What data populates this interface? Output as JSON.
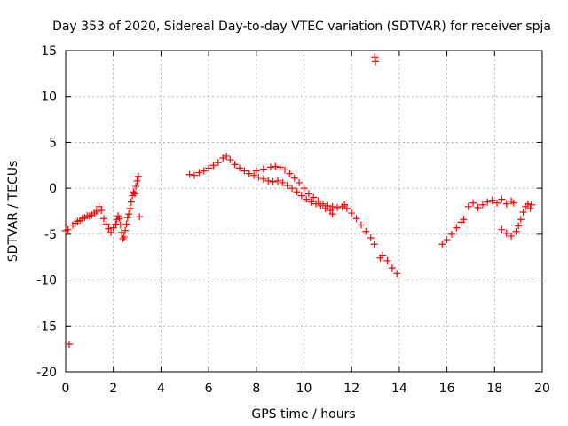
{
  "chart_data": {
    "type": "scatter",
    "title": "Day 353 of 2020, Sidereal Day-to-day VTEC variation (SDTVAR) for receiver spja",
    "xlabel": "GPS time / hours",
    "ylabel": "SDTVAR / TECUs",
    "xlim": [
      0,
      20
    ],
    "ylim": [
      -20,
      15
    ],
    "xticks": [
      0,
      2,
      4,
      6,
      8,
      10,
      12,
      14,
      16,
      18,
      20
    ],
    "yticks": [
      -20,
      -15,
      -10,
      -5,
      0,
      5,
      10,
      15
    ],
    "xtick_labels": [
      "0",
      "2",
      "4",
      "6",
      "8",
      "10",
      "12",
      "14",
      "16",
      "18",
      "20"
    ],
    "ytick_labels": [
      "-20",
      "-15",
      "-10",
      "-5",
      "0",
      "5",
      "10",
      "15"
    ],
    "grid": true,
    "marker": "plus",
    "marker_color": "#ff0000",
    "series": [
      {
        "name": "SDTVAR",
        "points": [
          [
            0.0,
            -4.6
          ],
          [
            0.1,
            -4.5
          ],
          [
            0.15,
            -17.0
          ],
          [
            0.3,
            -4.0
          ],
          [
            0.4,
            -3.8
          ],
          [
            0.5,
            -3.6
          ],
          [
            0.6,
            -3.5
          ],
          [
            0.7,
            -3.3
          ],
          [
            0.8,
            -3.2
          ],
          [
            0.9,
            -3.0
          ],
          [
            1.0,
            -3.0
          ],
          [
            1.1,
            -2.9
          ],
          [
            1.2,
            -2.7
          ],
          [
            1.3,
            -2.5
          ],
          [
            1.4,
            -2.0
          ],
          [
            1.5,
            -2.4
          ],
          [
            1.6,
            -3.3
          ],
          [
            1.7,
            -3.9
          ],
          [
            1.8,
            -4.4
          ],
          [
            1.9,
            -4.8
          ],
          [
            2.0,
            -4.3
          ],
          [
            2.1,
            -3.9
          ],
          [
            2.15,
            -3.4
          ],
          [
            2.2,
            -3.0
          ],
          [
            2.25,
            -3.3
          ],
          [
            2.3,
            -4.0
          ],
          [
            2.35,
            -4.8
          ],
          [
            2.4,
            -5.5
          ],
          [
            2.45,
            -5.3
          ],
          [
            2.5,
            -4.6
          ],
          [
            2.55,
            -3.9
          ],
          [
            2.6,
            -3.2
          ],
          [
            2.65,
            -2.8
          ],
          [
            2.7,
            -2.2
          ],
          [
            2.75,
            -1.5
          ],
          [
            2.8,
            -0.8
          ],
          [
            2.85,
            -0.4
          ],
          [
            2.9,
            -0.6
          ],
          [
            2.95,
            0.2
          ],
          [
            3.0,
            0.8
          ],
          [
            3.05,
            1.3
          ],
          [
            3.1,
            -3.1
          ],
          [
            5.2,
            1.5
          ],
          [
            5.4,
            1.4
          ],
          [
            5.6,
            1.7
          ],
          [
            5.8,
            1.9
          ],
          [
            6.0,
            2.2
          ],
          [
            6.2,
            2.5
          ],
          [
            6.4,
            2.8
          ],
          [
            6.6,
            3.3
          ],
          [
            6.75,
            3.5
          ],
          [
            6.9,
            3.1
          ],
          [
            7.1,
            2.6
          ],
          [
            7.3,
            2.2
          ],
          [
            7.5,
            1.9
          ],
          [
            7.7,
            1.6
          ],
          [
            7.9,
            1.4
          ],
          [
            8.1,
            1.2
          ],
          [
            8.3,
            1.0
          ],
          [
            8.5,
            0.8
          ],
          [
            8.7,
            0.7
          ],
          [
            8.9,
            0.8
          ],
          [
            9.1,
            0.6
          ],
          [
            9.3,
            0.3
          ],
          [
            9.5,
            0.0
          ],
          [
            9.7,
            -0.4
          ],
          [
            9.9,
            -0.8
          ],
          [
            10.1,
            -1.2
          ],
          [
            10.3,
            -1.5
          ],
          [
            10.5,
            -1.7
          ],
          [
            10.7,
            -1.9
          ],
          [
            10.9,
            -2.2
          ],
          [
            11.1,
            -2.4
          ],
          [
            11.2,
            -2.8
          ],
          [
            8.0,
            1.9
          ],
          [
            8.3,
            2.1
          ],
          [
            8.6,
            2.3
          ],
          [
            8.8,
            2.4
          ],
          [
            9.0,
            2.3
          ],
          [
            9.2,
            2.0
          ],
          [
            9.4,
            1.6
          ],
          [
            9.6,
            1.1
          ],
          [
            9.8,
            0.6
          ],
          [
            10.0,
            0.0
          ],
          [
            10.2,
            -0.6
          ],
          [
            10.4,
            -1.0
          ],
          [
            10.6,
            -1.4
          ],
          [
            10.8,
            -1.7
          ],
          [
            11.0,
            -1.9
          ],
          [
            11.2,
            -2.0
          ],
          [
            11.4,
            -2.1
          ],
          [
            11.6,
            -2.0
          ],
          [
            11.7,
            -1.8
          ],
          [
            11.8,
            -2.2
          ],
          [
            12.0,
            -2.7
          ],
          [
            12.2,
            -3.3
          ],
          [
            12.4,
            -4.0
          ],
          [
            12.6,
            -4.7
          ],
          [
            12.8,
            -5.4
          ],
          [
            12.95,
            -6.1
          ],
          [
            12.97,
            14.3
          ],
          [
            13.0,
            13.8
          ],
          [
            13.2,
            -7.6
          ],
          [
            13.3,
            -7.3
          ],
          [
            13.5,
            -7.9
          ],
          [
            13.7,
            -8.7
          ],
          [
            13.9,
            -9.3
          ],
          [
            15.8,
            -6.1
          ],
          [
            16.0,
            -5.6
          ],
          [
            16.2,
            -5.0
          ],
          [
            16.4,
            -4.3
          ],
          [
            16.6,
            -3.7
          ],
          [
            16.7,
            -3.4
          ],
          [
            16.9,
            -2.0
          ],
          [
            17.1,
            -1.6
          ],
          [
            17.3,
            -2.1
          ],
          [
            17.5,
            -1.8
          ],
          [
            17.7,
            -1.5
          ],
          [
            17.9,
            -1.3
          ],
          [
            18.1,
            -1.6
          ],
          [
            18.3,
            -1.2
          ],
          [
            18.5,
            -1.7
          ],
          [
            18.7,
            -1.4
          ],
          [
            18.8,
            -1.6
          ],
          [
            18.3,
            -4.5
          ],
          [
            18.5,
            -4.9
          ],
          [
            18.7,
            -5.2
          ],
          [
            18.9,
            -4.7
          ],
          [
            19.0,
            -4.1
          ],
          [
            19.1,
            -3.4
          ],
          [
            19.2,
            -2.6
          ],
          [
            19.3,
            -2.0
          ],
          [
            19.4,
            -1.7
          ],
          [
            19.5,
            -2.2
          ],
          [
            19.55,
            -1.8
          ]
        ]
      }
    ]
  }
}
